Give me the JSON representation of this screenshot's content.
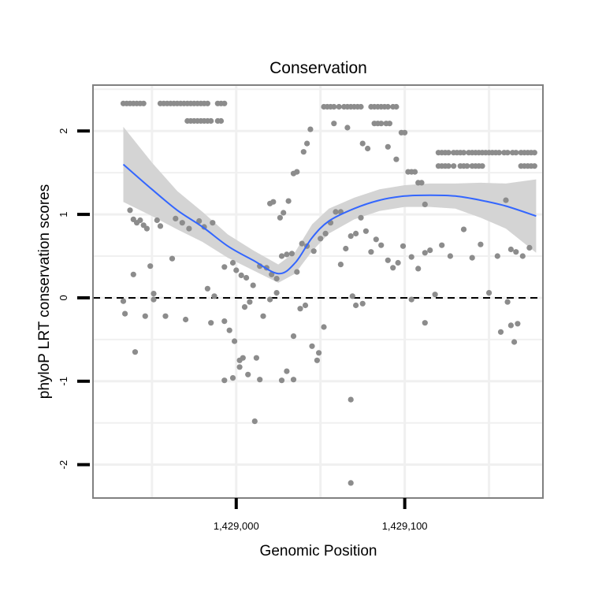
{
  "chart_data": {
    "type": "scatter",
    "title": "Conservation",
    "xlabel": "Genomic Position",
    "ylabel": "phyloP LRT conservation scores",
    "xlim": [
      1428915,
      1429182
    ],
    "ylim": [
      -2.4,
      2.55
    ],
    "x_ticks": [
      {
        "value": 1429000,
        "label": "1,429,000"
      },
      {
        "value": 1429100,
        "label": "1,429,100"
      }
    ],
    "y_ticks": [
      {
        "value": -2,
        "label": "-2"
      },
      {
        "value": -1,
        "label": "-1"
      },
      {
        "value": 0,
        "label": "0"
      },
      {
        "value": 1,
        "label": "1"
      },
      {
        "value": 2,
        "label": "2"
      }
    ],
    "grid": true,
    "reference_line": {
      "y": 0,
      "style": "dashed"
    },
    "colors": {
      "points": "#8c8c8c",
      "smooth_line": "#3366ff",
      "ribbon": "#d4d4d4",
      "panel_border": "#808080",
      "grid": "#f0f0f0"
    },
    "smooth_line": {
      "x": [
        1428933,
        1428950,
        1428965,
        1428980,
        1428995,
        1429010,
        1429025,
        1429035,
        1429045,
        1429055,
        1429070,
        1429085,
        1429100,
        1429115,
        1429130,
        1429145,
        1429160,
        1429178
      ],
      "y": [
        1.6,
        1.3,
        1.05,
        0.85,
        0.62,
        0.45,
        0.29,
        0.42,
        0.72,
        0.92,
        1.07,
        1.17,
        1.22,
        1.23,
        1.22,
        1.17,
        1.1,
        0.98
      ]
    },
    "ribbon": {
      "x": [
        1428933,
        1428950,
        1428965,
        1428980,
        1428995,
        1429010,
        1429025,
        1429035,
        1429045,
        1429055,
        1429070,
        1429085,
        1429100,
        1429115,
        1429130,
        1429145,
        1429160,
        1429178
      ],
      "upper": [
        2.05,
        1.62,
        1.28,
        1.03,
        0.76,
        0.57,
        0.4,
        0.55,
        0.88,
        1.07,
        1.2,
        1.3,
        1.35,
        1.37,
        1.37,
        1.38,
        1.37,
        1.42
      ],
      "lower": [
        1.15,
        0.98,
        0.82,
        0.67,
        0.48,
        0.33,
        0.18,
        0.29,
        0.56,
        0.77,
        0.94,
        1.04,
        1.09,
        1.09,
        1.07,
        0.96,
        0.83,
        0.54
      ]
    },
    "series": [
      {
        "x": [
          1428933,
          1428935,
          1428937,
          1428939,
          1428941,
          1428943,
          1428945,
          1428955,
          1428957,
          1428959,
          1428961,
          1428963,
          1428965,
          1428967,
          1428969,
          1428971,
          1428973,
          1428975,
          1428977,
          1428979,
          1428981,
          1428983,
          1428989,
          1428991,
          1428993,
          1428971,
          1428973,
          1428975,
          1428977,
          1428979,
          1428981,
          1428983,
          1428985,
          1428989,
          1428991,
          1429052,
          1429054,
          1429056,
          1429058,
          1429061,
          1429064,
          1429066,
          1429068,
          1429070,
          1429072,
          1429074,
          1429080,
          1429082,
          1429084,
          1429086,
          1429088,
          1429090,
          1429093,
          1429095,
          1429082,
          1429084,
          1429086,
          1429089,
          1429091,
          1429098,
          1429100,
          1429120,
          1429122,
          1429124,
          1429126,
          1429129,
          1429131,
          1429133,
          1429135,
          1429138,
          1429140,
          1429142,
          1429144,
          1429146,
          1429148,
          1429150,
          1429152,
          1429154,
          1429156,
          1429159,
          1429161,
          1429164,
          1429166,
          1429169,
          1429171,
          1429173,
          1429175,
          1429177,
          1429120,
          1429122,
          1429124,
          1429126,
          1429129,
          1429133,
          1429135,
          1429137,
          1429140,
          1429142,
          1429144,
          1429146,
          1429169,
          1429171,
          1429173,
          1429175,
          1429177,
          1429102,
          1429104,
          1429106,
          1429108,
          1429110,
          1429112,
          1429044,
          1429042,
          1429040,
          1429036,
          1429034,
          1429031,
          1429028,
          1429026,
          1429022,
          1429020,
          1429058,
          1429062,
          1429066,
          1429075,
          1429078,
          1429090,
          1429095,
          1428937,
          1428939,
          1428941,
          1428943,
          1428945,
          1428947,
          1428949,
          1428951,
          1428953,
          1428955,
          1428964,
          1428968,
          1428972,
          1428978,
          1428981,
          1428986,
          1428993,
          1428998,
          1429000,
          1429003,
          1429006,
          1429010,
          1429014,
          1429018,
          1429021,
          1429024,
          1429027,
          1429030,
          1429033,
          1429036,
          1429039,
          1429042,
          1429046,
          1429050,
          1429053,
          1429056,
          1429059,
          1429062,
          1429065,
          1429068,
          1429071,
          1429074,
          1429077,
          1429080,
          1429083,
          1429086,
          1429090,
          1429093,
          1429096,
          1429099,
          1429104,
          1429108,
          1429112,
          1429115,
          1429118,
          1429122,
          1429127,
          1429135,
          1429140,
          1429145,
          1429150,
          1429155,
          1429160,
          1429163,
          1429166,
          1429170,
          1429174,
          1428933,
          1428934,
          1428940,
          1428946,
          1428951,
          1428958,
          1428962,
          1428970,
          1428983,
          1428985,
          1428987,
          1428993,
          1428996,
          1428999,
          1429002,
          1429005,
          1429008,
          1429012,
          1429016,
          1429020,
          1429024,
          1429027,
          1429030,
          1429034,
          1429038,
          1429041,
          1429045,
          1429048,
          1429052,
          1429068,
          1429071,
          1429075,
          1429104,
          1429112,
          1429157,
          1429161,
          1429163,
          1429165,
          1429167,
          1428939,
          1428993,
          1428998,
          1429002,
          1429004,
          1429007,
          1429011,
          1429014,
          1429034,
          1429049,
          1429068,
          1429069
        ],
        "y": [
          2.33,
          2.33,
          2.33,
          2.33,
          2.33,
          2.33,
          2.33,
          2.33,
          2.33,
          2.33,
          2.33,
          2.33,
          2.33,
          2.33,
          2.33,
          2.33,
          2.33,
          2.33,
          2.33,
          2.33,
          2.33,
          2.33,
          2.33,
          2.33,
          2.33,
          2.12,
          2.12,
          2.12,
          2.12,
          2.12,
          2.12,
          2.12,
          2.12,
          2.12,
          2.12,
          2.29,
          2.29,
          2.29,
          2.29,
          2.29,
          2.29,
          2.29,
          2.29,
          2.29,
          2.29,
          2.29,
          2.29,
          2.29,
          2.29,
          2.29,
          2.29,
          2.29,
          2.29,
          2.29,
          2.09,
          2.09,
          2.09,
          2.09,
          2.09,
          1.98,
          1.98,
          1.74,
          1.74,
          1.74,
          1.74,
          1.74,
          1.74,
          1.74,
          1.74,
          1.74,
          1.74,
          1.74,
          1.74,
          1.74,
          1.74,
          1.74,
          1.74,
          1.74,
          1.74,
          1.74,
          1.74,
          1.74,
          1.74,
          1.74,
          1.74,
          1.74,
          1.74,
          1.74,
          1.58,
          1.58,
          1.58,
          1.58,
          1.58,
          1.58,
          1.58,
          1.58,
          1.58,
          1.58,
          1.58,
          1.58,
          1.58,
          1.58,
          1.58,
          1.58,
          1.58,
          1.51,
          1.51,
          1.51,
          1.38,
          1.38,
          1.12,
          2.02,
          1.85,
          1.75,
          1.51,
          1.49,
          1.16,
          1.02,
          0.96,
          1.15,
          1.13,
          2.09,
          1.03,
          2.04,
          1.85,
          1.79,
          1.81,
          1.66,
          1.05,
          0.94,
          0.9,
          0.93,
          0.87,
          0.83,
          0.38,
          0.05,
          0.93,
          0.86,
          0.95,
          0.9,
          0.83,
          0.92,
          0.85,
          0.9,
          0.37,
          0.42,
          0.33,
          0.27,
          0.24,
          0.15,
          0.38,
          0.36,
          0.28,
          0.23,
          0.5,
          0.52,
          0.53,
          0.31,
          0.65,
          0.62,
          0.56,
          0.71,
          0.77,
          0.9,
          1.03,
          0.4,
          0.59,
          0.74,
          0.77,
          0.96,
          0.8,
          0.55,
          0.7,
          0.63,
          0.45,
          0.36,
          0.42,
          0.62,
          0.49,
          0.35,
          0.54,
          0.57,
          0.04,
          0.63,
          0.5,
          0.82,
          0.48,
          0.64,
          0.06,
          0.5,
          1.17,
          0.58,
          0.55,
          0.5,
          0.6,
          -0.04,
          -0.19,
          -0.65,
          -0.22,
          -0.02,
          -0.22,
          0.47,
          -0.26,
          0.11,
          -0.3,
          0.02,
          -0.28,
          -0.39,
          -0.52,
          -0.75,
          -0.11,
          -0.05,
          -0.72,
          -0.22,
          -0.02,
          0.06,
          -0.99,
          -0.88,
          -0.46,
          -0.13,
          -0.09,
          -0.58,
          -0.75,
          -0.35,
          -1.22,
          -0.09,
          -0.07,
          -0.02,
          -0.3,
          -0.41,
          -0.05,
          -0.33,
          -0.53,
          -0.31,
          0.28,
          -0.99,
          -0.96,
          -0.83,
          -0.72,
          -0.92,
          -1.48,
          -0.98,
          -0.98,
          -0.66,
          -2.22,
          0.02
        ]
      }
    ]
  }
}
